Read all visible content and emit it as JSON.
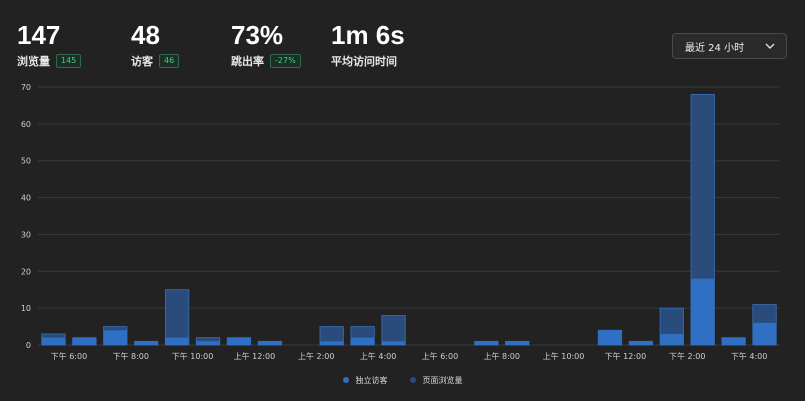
{
  "stats": [
    {
      "value": "147",
      "label": "浏览量",
      "badge": "145"
    },
    {
      "value": "48",
      "label": "访客",
      "badge": "46"
    },
    {
      "value": "73%",
      "label": "跳出率",
      "badge": "-27%"
    },
    {
      "value": "1m 6s",
      "label": "平均访问时间",
      "badge": ""
    }
  ],
  "range_select": {
    "label": "最近 24 小时",
    "icon": "chevron-down-icon"
  },
  "colors": {
    "background": "#222222",
    "visitors": "#2f6fc4",
    "pageviews": "#2a4c7c",
    "badge_text": "#3ecf8e",
    "grid": "#3a3a3a"
  },
  "chart_data": {
    "type": "bar",
    "stacked_overlay": true,
    "ylim": [
      0,
      70
    ],
    "yticks": [
      0,
      10,
      20,
      30,
      40,
      50,
      60,
      70
    ],
    "grid": true,
    "legend_position": "bottom-center",
    "x_tick_labels": [
      {
        "index": 0,
        "label": "下午 6:00"
      },
      {
        "index": 2,
        "label": "下午 8:00"
      },
      {
        "index": 4,
        "label": "下午 10:00"
      },
      {
        "index": 6,
        "label": "上午 12:00"
      },
      {
        "index": 8,
        "label": "上午 2:00"
      },
      {
        "index": 10,
        "label": "上午 4:00"
      },
      {
        "index": 12,
        "label": "上午 6:00"
      },
      {
        "index": 14,
        "label": "上午 8:00"
      },
      {
        "index": 16,
        "label": "上午 10:00"
      },
      {
        "index": 18,
        "label": "下午 12:00"
      },
      {
        "index": 20,
        "label": "下午 2:00"
      },
      {
        "index": 22,
        "label": "下午 4:00"
      }
    ],
    "series": [
      {
        "name": "独立访客",
        "values": [
          2,
          2,
          4,
          1,
          2,
          1,
          2,
          1,
          0,
          1,
          2,
          1,
          0,
          0,
          1,
          1,
          0,
          0,
          4,
          1,
          3,
          18,
          2,
          6
        ]
      },
      {
        "name": "页面浏览量",
        "values": [
          3,
          2,
          5,
          1,
          15,
          2,
          2,
          1,
          0,
          5,
          5,
          8,
          0,
          0,
          1,
          1,
          0,
          0,
          4,
          1,
          10,
          68,
          2,
          11
        ]
      }
    ]
  }
}
